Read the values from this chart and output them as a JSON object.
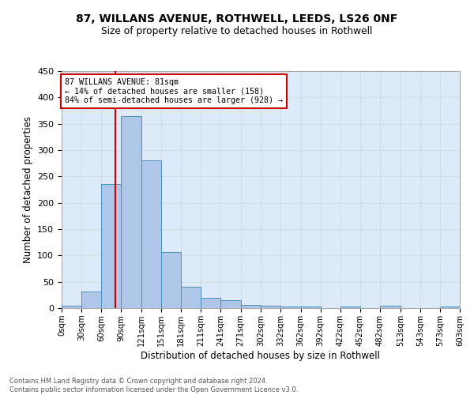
{
  "title1": "87, WILLANS AVENUE, ROTHWELL, LEEDS, LS26 0NF",
  "title2": "Size of property relative to detached houses in Rothwell",
  "xlabel": "Distribution of detached houses by size in Rothwell",
  "ylabel": "Number of detached properties",
  "footnote": "Contains HM Land Registry data © Crown copyright and database right 2024.\nContains public sector information licensed under the Open Government Licence v3.0.",
  "bin_edges": [
    0,
    30,
    60,
    90,
    121,
    151,
    181,
    211,
    241,
    271,
    302,
    332,
    362,
    392,
    422,
    452,
    482,
    513,
    543,
    573,
    603
  ],
  "bin_labels": [
    "0sqm",
    "30sqm",
    "60sqm",
    "90sqm",
    "121sqm",
    "151sqm",
    "181sqm",
    "211sqm",
    "241sqm",
    "271sqm",
    "302sqm",
    "332sqm",
    "362sqm",
    "392sqm",
    "422sqm",
    "452sqm",
    "482sqm",
    "513sqm",
    "543sqm",
    "573sqm",
    "603sqm"
  ],
  "counts": [
    5,
    32,
    235,
    365,
    280,
    106,
    41,
    20,
    15,
    6,
    4,
    3,
    3,
    0,
    3,
    0,
    4,
    0,
    0,
    3
  ],
  "bar_color": "#aec6e8",
  "bar_edge_color": "#4a90c4",
  "grid_color": "#d0dce8",
  "background_color": "#ddeaf8",
  "vline_x": 81,
  "vline_color": "#cc0000",
  "annotation_text": "87 WILLANS AVENUE: 81sqm\n← 14% of detached houses are smaller (158)\n84% of semi-detached houses are larger (928) →",
  "annotation_box_color": "#ffffff",
  "annotation_border_color": "#cc0000",
  "ylim": [
    0,
    450
  ],
  "yticks": [
    0,
    50,
    100,
    150,
    200,
    250,
    300,
    350,
    400,
    450
  ]
}
